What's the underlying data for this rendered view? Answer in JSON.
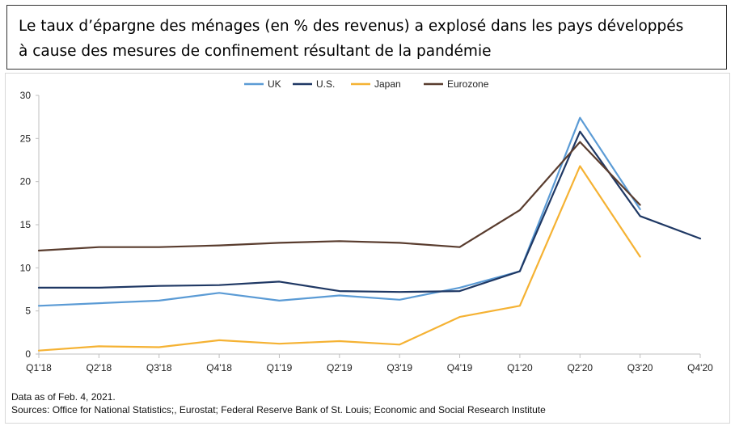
{
  "title": {
    "line1": "Le taux d’épargne des ménages (en % des revenus) a explosé dans les pays développés",
    "line2": "à cause des mesures de confinement résultant de la pandémie"
  },
  "footer": {
    "note": "Data as of Feb. 4, 2021.",
    "sources": "Sources: Office for National Statistics;, Eurostat; Federal Reserve Bank of St. Louis; Economic and Social Research Institute"
  },
  "chart_data": {
    "type": "line",
    "categories": [
      "Q1'18",
      "Q2'18",
      "Q3'18",
      "Q4'18",
      "Q1'19",
      "Q2'19",
      "Q3'19",
      "Q4'19",
      "Q1'20",
      "Q2'20",
      "Q3'20",
      "Q4'20"
    ],
    "ylim": [
      0,
      30
    ],
    "yticks": [
      0,
      5,
      10,
      15,
      20,
      25,
      30
    ],
    "grid": false,
    "legend_position": "top",
    "series": [
      {
        "name": "UK",
        "color": "#5b9bd5",
        "values": [
          5.6,
          5.9,
          6.2,
          7.1,
          6.2,
          6.8,
          6.3,
          7.7,
          9.6,
          27.4,
          16.8,
          null
        ]
      },
      {
        "name": "U.S.",
        "color": "#1f3864",
        "values": [
          7.7,
          7.7,
          7.9,
          8.0,
          8.4,
          7.3,
          7.2,
          7.3,
          9.6,
          25.8,
          16.0,
          13.4
        ]
      },
      {
        "name": "Japan",
        "color": "#f5b233",
        "values": [
          0.4,
          0.9,
          0.8,
          1.6,
          1.2,
          1.5,
          1.1,
          4.3,
          5.6,
          21.8,
          11.3,
          null
        ]
      },
      {
        "name": "Eurozone",
        "color": "#593c2e",
        "values": [
          12.0,
          12.4,
          12.4,
          12.6,
          12.9,
          13.1,
          12.9,
          12.4,
          16.7,
          24.6,
          17.3,
          null
        ]
      }
    ]
  }
}
